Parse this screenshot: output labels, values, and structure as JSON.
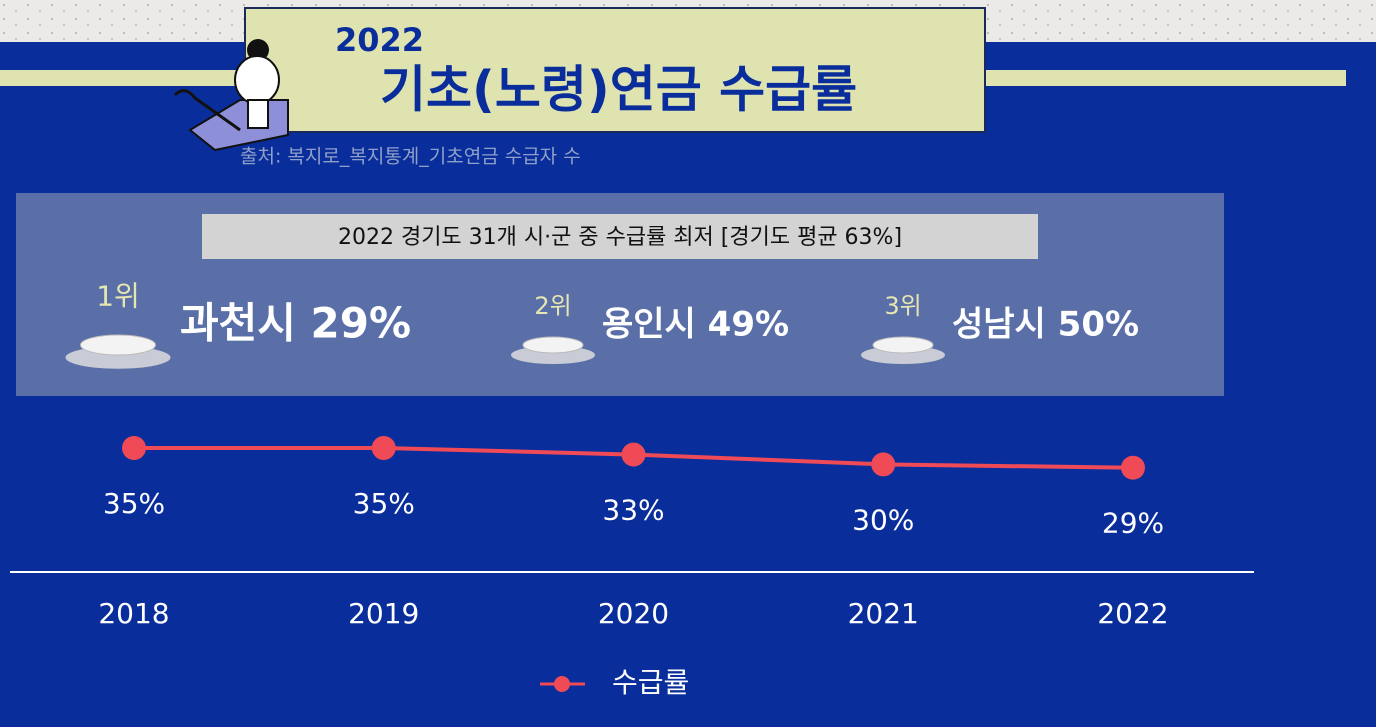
{
  "header": {
    "year": "2022",
    "title": "기초(노령)연금 수급률",
    "source": "출처: 복지로_복지통계_기초연금 수급자 수"
  },
  "highlight": {
    "heading": "2022 경기도 31개 시·군 중 수급률 최저 [경기도 평균 63%]",
    "ranks": [
      {
        "rank": "1위",
        "text": "과천시 29%"
      },
      {
        "rank": "2위",
        "text": "용인시 49%"
      },
      {
        "rank": "3위",
        "text": "성남시 50%"
      }
    ]
  },
  "chart_data": {
    "type": "line",
    "categories": [
      "2018",
      "2019",
      "2020",
      "2021",
      "2022"
    ],
    "series": [
      {
        "name": "수급률",
        "color": "#ef4a55",
        "values": [
          35,
          35,
          33,
          30,
          29
        ],
        "value_labels": [
          "35%",
          "35%",
          "33%",
          "30%",
          "29%"
        ]
      }
    ],
    "ylim": [
      0,
      35
    ]
  }
}
